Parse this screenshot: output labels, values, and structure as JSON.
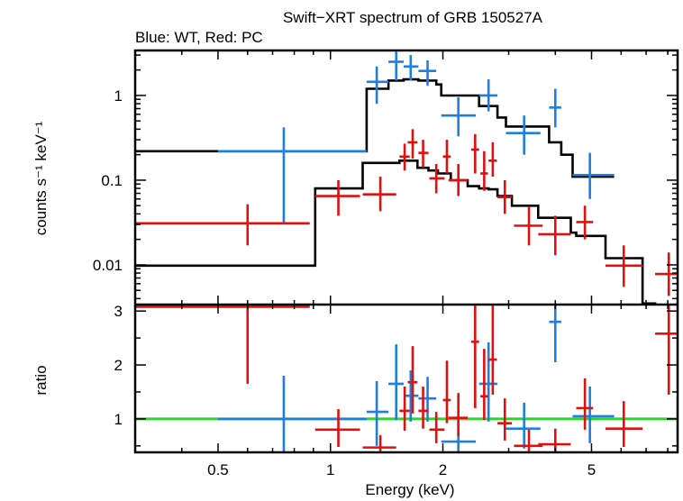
{
  "chart_data": [
    {
      "type": "scatter",
      "panel": "spectrum",
      "title": "Swift−XRT spectrum of GRB 150527A",
      "subtitle": "Blue: WT, Red: PC",
      "xlabel": "Energy (keV)",
      "ylabel": "counts s⁻¹ keV⁻¹",
      "xscale": "log",
      "yscale": "log",
      "xlim": [
        0.3,
        8.5
      ],
      "ylim": [
        0.0034,
        3.4
      ],
      "ytick_labels": [
        "0.01",
        "0.1",
        "1"
      ],
      "ytick_values": [
        0.01,
        0.1,
        1
      ],
      "colors": {
        "wt": "#1f7fe0",
        "pc": "#e01010",
        "model": "#000000",
        "ratio_line": "#22dd22"
      },
      "series": [
        {
          "color_key": "wt",
          "points": [
            {
              "x": 0.75,
              "xlo": 0.5,
              "xhi": 1.25,
              "y": 0.22,
              "ylo": 0.032,
              "yhi": 0.42
            },
            {
              "x": 1.33,
              "xlo": 1.25,
              "xhi": 1.43,
              "y": 1.45,
              "ylo": 0.8,
              "yhi": 2.2
            },
            {
              "x": 1.5,
              "xlo": 1.43,
              "xhi": 1.57,
              "y": 2.5,
              "ylo": 1.5,
              "yhi": 3.3
            },
            {
              "x": 1.64,
              "xlo": 1.57,
              "xhi": 1.72,
              "y": 2.2,
              "ylo": 1.5,
              "yhi": 3.0
            },
            {
              "x": 1.82,
              "xlo": 1.72,
              "xhi": 1.92,
              "y": 1.95,
              "ylo": 1.3,
              "yhi": 2.6
            },
            {
              "x": 2.2,
              "xlo": 1.98,
              "xhi": 2.45,
              "y": 0.58,
              "ylo": 0.33,
              "yhi": 0.95
            },
            {
              "x": 2.65,
              "xlo": 2.5,
              "xhi": 2.8,
              "y": 1.0,
              "ylo": 0.65,
              "yhi": 1.55
            },
            {
              "x": 3.3,
              "xlo": 2.95,
              "xhi": 3.65,
              "y": 0.36,
              "ylo": 0.2,
              "yhi": 0.58
            },
            {
              "x": 4.0,
              "xlo": 3.85,
              "xhi": 4.15,
              "y": 0.72,
              "ylo": 0.42,
              "yhi": 1.2
            },
            {
              "x": 4.95,
              "xlo": 4.45,
              "xhi": 5.75,
              "y": 0.115,
              "ylo": 0.06,
              "yhi": 0.21
            }
          ]
        },
        {
          "color_key": "pc",
          "points": [
            {
              "x": 0.6,
              "xlo": 0.3,
              "xhi": 0.88,
              "y": 0.031,
              "ylo": 0.017,
              "yhi": 0.052
            },
            {
              "x": 1.05,
              "xlo": 0.91,
              "xhi": 1.2,
              "y": 0.065,
              "ylo": 0.038,
              "yhi": 0.1
            },
            {
              "x": 1.36,
              "xlo": 1.22,
              "xhi": 1.5,
              "y": 0.068,
              "ylo": 0.043,
              "yhi": 0.11
            },
            {
              "x": 1.58,
              "xlo": 1.53,
              "xhi": 1.63,
              "y": 0.19,
              "ylo": 0.13,
              "yhi": 0.27
            },
            {
              "x": 1.66,
              "xlo": 1.61,
              "xhi": 1.71,
              "y": 0.28,
              "ylo": 0.18,
              "yhi": 0.4
            },
            {
              "x": 1.77,
              "xlo": 1.72,
              "xhi": 1.83,
              "y": 0.21,
              "ylo": 0.14,
              "yhi": 0.3
            },
            {
              "x": 1.92,
              "xlo": 1.84,
              "xhi": 2.02,
              "y": 0.105,
              "ylo": 0.07,
              "yhi": 0.155
            },
            {
              "x": 2.05,
              "xlo": 2.0,
              "xhi": 2.1,
              "y": 0.19,
              "ylo": 0.12,
              "yhi": 0.3
            },
            {
              "x": 2.2,
              "xlo": 2.07,
              "xhi": 2.33,
              "y": 0.1,
              "ylo": 0.065,
              "yhi": 0.155
            },
            {
              "x": 2.44,
              "xlo": 2.38,
              "xhi": 2.5,
              "y": 0.23,
              "ylo": 0.12,
              "yhi": 0.35
            },
            {
              "x": 2.58,
              "xlo": 2.52,
              "xhi": 2.64,
              "y": 0.12,
              "ylo": 0.075,
              "yhi": 0.22
            },
            {
              "x": 2.72,
              "xlo": 2.65,
              "xhi": 2.79,
              "y": 0.17,
              "ylo": 0.11,
              "yhi": 0.28
            },
            {
              "x": 2.93,
              "xlo": 2.8,
              "xhi": 3.06,
              "y": 0.063,
              "ylo": 0.04,
              "yhi": 0.1
            },
            {
              "x": 3.4,
              "xlo": 3.1,
              "xhi": 3.7,
              "y": 0.029,
              "ylo": 0.017,
              "yhi": 0.048
            },
            {
              "x": 4.0,
              "xlo": 3.6,
              "xhi": 4.4,
              "y": 0.023,
              "ylo": 0.013,
              "yhi": 0.038
            },
            {
              "x": 4.8,
              "xlo": 4.55,
              "xhi": 5.05,
              "y": 0.032,
              "ylo": 0.02,
              "yhi": 0.05
            },
            {
              "x": 6.1,
              "xlo": 5.45,
              "xhi": 6.85,
              "y": 0.0098,
              "ylo": 0.0055,
              "yhi": 0.017
            },
            {
              "x": 8.05,
              "xlo": 7.4,
              "xhi": 8.5,
              "y": 0.0078,
              "ylo": 0.0043,
              "yhi": 0.014
            }
          ]
        }
      ],
      "model_steps": [
        {
          "color_key": "model",
          "edges": [
            0.3,
            1.25,
            1.43,
            1.57,
            1.72,
            1.92,
            1.98,
            2.45,
            2.5,
            2.8,
            2.95,
            3.65,
            3.85,
            4.15,
            4.45,
            5.75
          ],
          "values": [
            0.22,
            1.2,
            1.5,
            1.55,
            1.5,
            1.35,
            1.0,
            1.0,
            0.75,
            0.55,
            0.43,
            0.43,
            0.28,
            0.2,
            0.11
          ]
        },
        {
          "color_key": "model",
          "edges": [
            0.3,
            0.91,
            1.2,
            1.22,
            1.5,
            1.53,
            1.63,
            1.71,
            1.83,
            1.94,
            2.1,
            2.33,
            2.5,
            2.65,
            2.8,
            3.06,
            3.6,
            4.4,
            4.55,
            5.45,
            6.85,
            7.4
          ],
          "values": [
            0.0098,
            0.08,
            0.08,
            0.16,
            0.16,
            0.17,
            0.17,
            0.14,
            0.13,
            0.12,
            0.1,
            0.085,
            0.08,
            0.078,
            0.065,
            0.05,
            0.036,
            0.024,
            0.022,
            0.012,
            0.0035
          ]
        }
      ]
    },
    {
      "type": "scatter",
      "panel": "ratio",
      "xlabel": "Energy (keV)",
      "ylabel": "ratio",
      "xscale": "log",
      "xlim": [
        0.3,
        8.5
      ],
      "ylim": [
        0.38,
        3.12
      ],
      "ytick_labels": [
        "1",
        "2",
        "3"
      ],
      "ytick_values": [
        1,
        2,
        3
      ],
      "xtick_labels": [
        "0.5",
        "1",
        "2",
        "5"
      ],
      "xtick_values": [
        0.5,
        1,
        2,
        5
      ],
      "reference_line": 1.0,
      "series": [
        {
          "color_key": "wt",
          "points": [
            {
              "x": 0.75,
              "xlo": 0.5,
              "xhi": 1.25,
              "y": 1.0,
              "ylo": 0.38,
              "yhi": 1.8
            },
            {
              "x": 1.33,
              "xlo": 1.25,
              "xhi": 1.43,
              "y": 1.13,
              "ylo": 0.5,
              "yhi": 1.7
            },
            {
              "x": 1.5,
              "xlo": 1.43,
              "xhi": 1.57,
              "y": 1.65,
              "ylo": 0.98,
              "yhi": 2.38
            },
            {
              "x": 1.64,
              "xlo": 1.57,
              "xhi": 1.72,
              "y": 1.43,
              "ylo": 0.95,
              "yhi": 1.9
            },
            {
              "x": 1.82,
              "xlo": 1.72,
              "xhi": 1.92,
              "y": 1.38,
              "ylo": 0.95,
              "yhi": 1.78
            },
            {
              "x": 2.2,
              "xlo": 1.98,
              "xhi": 2.45,
              "y": 0.58,
              "ylo": 0.38,
              "yhi": 0.95
            },
            {
              "x": 2.65,
              "xlo": 2.5,
              "xhi": 2.8,
              "y": 1.65,
              "ylo": 0.95,
              "yhi": 2.42
            },
            {
              "x": 3.3,
              "xlo": 2.95,
              "xhi": 3.65,
              "y": 0.82,
              "ylo": 0.45,
              "yhi": 1.3
            },
            {
              "x": 4.0,
              "xlo": 3.85,
              "xhi": 4.15,
              "y": 2.8,
              "ylo": 2.05,
              "yhi": 3.12
            },
            {
              "x": 4.95,
              "xlo": 4.45,
              "xhi": 5.75,
              "y": 1.05,
              "ylo": 0.55,
              "yhi": 1.6
            }
          ]
        },
        {
          "color_key": "pc",
          "points": [
            {
              "x": 0.6,
              "xlo": 0.3,
              "xhi": 0.88,
              "y": 3.08,
              "ylo": 1.65,
              "yhi": 3.12
            },
            {
              "x": 1.05,
              "xlo": 0.91,
              "xhi": 1.2,
              "y": 0.8,
              "ylo": 0.48,
              "yhi": 1.18
            },
            {
              "x": 1.36,
              "xlo": 1.22,
              "xhi": 1.5,
              "y": 0.47,
              "ylo": 0.38,
              "yhi": 0.7
            },
            {
              "x": 1.58,
              "xlo": 1.53,
              "xhi": 1.63,
              "y": 1.15,
              "ylo": 0.78,
              "yhi": 1.6
            },
            {
              "x": 1.66,
              "xlo": 1.61,
              "xhi": 1.71,
              "y": 1.68,
              "ylo": 1.1,
              "yhi": 2.35
            },
            {
              "x": 1.77,
              "xlo": 1.72,
              "xhi": 1.83,
              "y": 1.15,
              "ylo": 0.82,
              "yhi": 1.6
            },
            {
              "x": 1.92,
              "xlo": 1.84,
              "xhi": 2.02,
              "y": 0.8,
              "ylo": 0.55,
              "yhi": 1.13
            },
            {
              "x": 2.05,
              "xlo": 2.0,
              "xhi": 2.1,
              "y": 1.35,
              "ylo": 0.92,
              "yhi": 2.08
            },
            {
              "x": 2.2,
              "xlo": 2.07,
              "xhi": 2.33,
              "y": 1.02,
              "ylo": 0.68,
              "yhi": 1.48
            },
            {
              "x": 2.44,
              "xlo": 2.38,
              "xhi": 2.5,
              "y": 2.43,
              "ylo": 1.2,
              "yhi": 3.12
            },
            {
              "x": 2.58,
              "xlo": 2.52,
              "xhi": 2.64,
              "y": 1.42,
              "ylo": 0.98,
              "yhi": 2.3
            },
            {
              "x": 2.72,
              "xlo": 2.65,
              "xhi": 2.79,
              "y": 2.1,
              "ylo": 1.45,
              "yhi": 3.12
            },
            {
              "x": 2.93,
              "xlo": 2.8,
              "xhi": 3.06,
              "y": 0.92,
              "ylo": 0.6,
              "yhi": 1.38
            },
            {
              "x": 3.4,
              "xlo": 3.1,
              "xhi": 3.7,
              "y": 0.5,
              "ylo": 0.38,
              "yhi": 0.8
            },
            {
              "x": 4.0,
              "xlo": 3.6,
              "xhi": 4.4,
              "y": 0.53,
              "ylo": 0.38,
              "yhi": 0.82
            },
            {
              "x": 4.8,
              "xlo": 4.55,
              "xhi": 5.05,
              "y": 1.2,
              "ylo": 0.8,
              "yhi": 1.75
            },
            {
              "x": 6.1,
              "xlo": 5.45,
              "xhi": 6.85,
              "y": 0.82,
              "ylo": 0.48,
              "yhi": 1.33
            },
            {
              "x": 8.05,
              "xlo": 7.4,
              "xhi": 8.5,
              "y": 2.58,
              "ylo": 1.45,
              "yhi": 3.12
            }
          ]
        }
      ]
    }
  ]
}
